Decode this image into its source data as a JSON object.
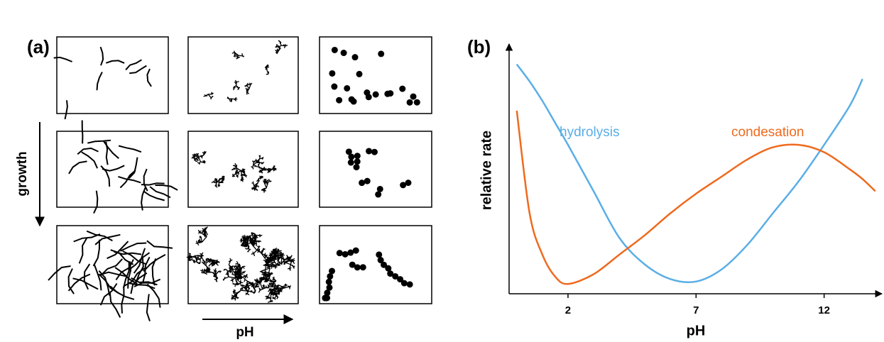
{
  "panel_a": {
    "label": "(a)",
    "growth_label": "growth",
    "ph_label": "pH"
  },
  "chart_data": {
    "type": "line",
    "panel_label": "(b)",
    "ylabel": "relative rate",
    "xlabel": "pH",
    "x": [
      0,
      0.5,
      1,
      1.5,
      2,
      3,
      4,
      5,
      6,
      7,
      8,
      9,
      10,
      11,
      12,
      13,
      13.5,
      14
    ],
    "series": [
      {
        "name": "hydrolysis",
        "color": "#5aaee6",
        "values": [
          9.4,
          8.7,
          7.9,
          7.0,
          6.1,
          4.2,
          2.3,
          1.2,
          0.6,
          0.5,
          1.0,
          2.0,
          3.3,
          4.6,
          6.1,
          7.7,
          8.8,
          null
        ]
      },
      {
        "name": "condesation",
        "color": "#ef6a1e",
        "values": [
          7.5,
          3.3,
          1.6,
          0.7,
          0.4,
          0.8,
          1.6,
          2.4,
          3.3,
          4.1,
          4.8,
          5.5,
          6.0,
          6.1,
          5.8,
          5.1,
          4.7,
          4.2
        ]
      }
    ],
    "xlim": [
      -0.3,
      14.2
    ],
    "xticks": [
      2,
      7,
      12
    ],
    "ylim": [
      0,
      10
    ]
  }
}
